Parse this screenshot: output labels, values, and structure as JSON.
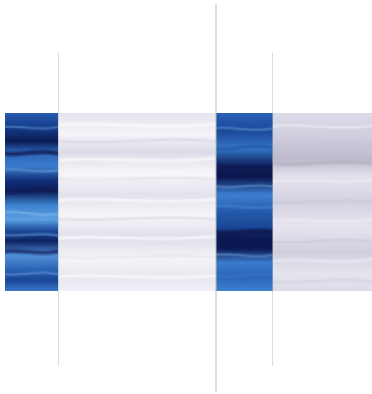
{
  "scene": {
    "background_color": "#ffffff",
    "guide_line_color": "#b8b8b8",
    "panels": [
      {
        "kind": "water-blue",
        "base": "#1e4fa0",
        "dark": "#0a1a52",
        "light": "#6fa8e0"
      },
      {
        "kind": "water-white",
        "base": "#e9e9f1",
        "dark": "#c9c9d6",
        "light": "#f8f8fc"
      },
      {
        "kind": "water-blue",
        "base": "#1e4fa0",
        "dark": "#0a1a52",
        "light": "#6fa8e0"
      },
      {
        "kind": "water-lavender",
        "base": "#d8d6e4",
        "dark": "#b9b6c9",
        "light": "#ebeaf2"
      }
    ]
  }
}
